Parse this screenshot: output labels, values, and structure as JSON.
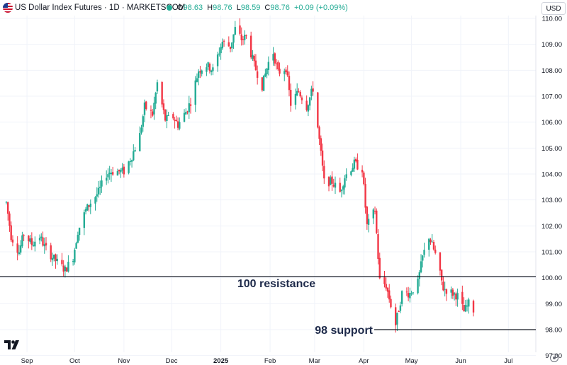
{
  "header": {
    "title": "US Dollar Index Futures · 1D · MARKETSCOM",
    "ohlc": [
      {
        "k": "O",
        "v": "98.63"
      },
      {
        "k": "H",
        "v": "98.76"
      },
      {
        "k": "L",
        "v": "98.59"
      },
      {
        "k": "C",
        "v": "98.76"
      },
      {
        "k": "",
        "v": "+0.09 (+0.09%)"
      }
    ],
    "currency": "USD"
  },
  "colors": {
    "up": "#22ab94",
    "down": "#f23645",
    "level_line": "#131722",
    "annotation": "#1e2a4a"
  },
  "icons": [
    "us-flag-icon",
    "status-dot-icon",
    "tradingview-logo-icon",
    "settings-gear-icon"
  ],
  "chart_data": {
    "type": "candlestick",
    "title": "US Dollar Index Futures · 1D · MARKETSCOM",
    "xlabel": "",
    "ylabel": "",
    "ylim": [
      96.8,
      110.3
    ],
    "yticks": [
      "97.00",
      "98.00",
      "99.00",
      "100.00",
      "101.00",
      "102.00",
      "103.00",
      "104.00",
      "105.00",
      "106.00",
      "107.00",
      "108.00",
      "109.00",
      "110.00"
    ],
    "ytick_values": [
      97,
      98,
      99,
      100,
      101,
      102,
      103,
      104,
      105,
      106,
      107,
      108,
      109,
      110
    ],
    "xticks": [
      "Sep",
      "Oct",
      "Nov",
      "Dec",
      "2025",
      "Feb",
      "Mar",
      "Apr",
      "May",
      "Jun",
      "Jul"
    ],
    "xtick_dates": [
      "2024-09-01",
      "2024-10-01",
      "2024-11-01",
      "2024-12-01",
      "2025-01-01",
      "2025-02-01",
      "2025-03-01",
      "2025-04-01",
      "2025-05-01",
      "2025-06-01",
      "2025-07-01"
    ],
    "x_start": "2024-08-15",
    "x_end": "2025-07-12",
    "close_series": [
      [
        "2024-08-19",
        102.9
      ],
      [
        "2024-08-22",
        101.6
      ],
      [
        "2024-08-27",
        101.0
      ],
      [
        "2024-08-30",
        101.7
      ],
      [
        "2024-09-04",
        101.3
      ],
      [
        "2024-09-09",
        101.6
      ],
      [
        "2024-09-12",
        101.2
      ],
      [
        "2024-09-17",
        100.8
      ],
      [
        "2024-09-20",
        100.6
      ],
      [
        "2024-09-25",
        100.3
      ],
      [
        "2024-09-30",
        100.8
      ],
      [
        "2024-10-03",
        101.8
      ],
      [
        "2024-10-08",
        102.6
      ],
      [
        "2024-10-11",
        102.9
      ],
      [
        "2024-10-16",
        103.3
      ],
      [
        "2024-10-21",
        104.0
      ],
      [
        "2024-10-24",
        104.1
      ],
      [
        "2024-10-29",
        104.1
      ],
      [
        "2024-11-01",
        104.1
      ],
      [
        "2024-11-06",
        104.7
      ],
      [
        "2024-11-11",
        105.5
      ],
      [
        "2024-11-14",
        106.6
      ],
      [
        "2024-11-19",
        106.3
      ],
      [
        "2024-11-22",
        107.5
      ],
      [
        "2024-11-27",
        106.1
      ],
      [
        "2024-12-02",
        106.2
      ],
      [
        "2024-12-05",
        105.9
      ],
      [
        "2024-12-10",
        106.4
      ],
      [
        "2024-12-13",
        106.8
      ],
      [
        "2024-12-18",
        108.0
      ],
      [
        "2024-12-23",
        108.2
      ],
      [
        "2024-12-27",
        108.0
      ],
      [
        "2025-01-02",
        109.1
      ],
      [
        "2025-01-07",
        108.9
      ],
      [
        "2025-01-10",
        109.6
      ],
      [
        "2025-01-14",
        109.2
      ],
      [
        "2025-01-17",
        109.3
      ],
      [
        "2025-01-22",
        108.2
      ],
      [
        "2025-01-27",
        107.4
      ],
      [
        "2025-01-31",
        108.3
      ],
      [
        "2025-02-03",
        108.7
      ],
      [
        "2025-02-06",
        107.9
      ],
      [
        "2025-02-11",
        108.1
      ],
      [
        "2025-02-14",
        106.7
      ],
      [
        "2025-02-19",
        107.2
      ],
      [
        "2025-02-24",
        106.6
      ],
      [
        "2025-02-28",
        107.3
      ],
      [
        "2025-03-04",
        105.3
      ],
      [
        "2025-03-07",
        103.7
      ],
      [
        "2025-03-12",
        103.7
      ],
      [
        "2025-03-17",
        103.3
      ],
      [
        "2025-03-20",
        103.9
      ],
      [
        "2025-03-26",
        104.4
      ],
      [
        "2025-03-31",
        104.2
      ],
      [
        "2025-04-03",
        102.0
      ],
      [
        "2025-04-08",
        102.6
      ],
      [
        "2025-04-11",
        99.9
      ],
      [
        "2025-04-15",
        99.7
      ],
      [
        "2025-04-21",
        98.2
      ],
      [
        "2025-04-25",
        99.4
      ],
      [
        "2025-04-30",
        99.4
      ],
      [
        "2025-05-05",
        99.8
      ],
      [
        "2025-05-08",
        100.8
      ],
      [
        "2025-05-12",
        101.6
      ],
      [
        "2025-05-16",
        100.9
      ],
      [
        "2025-05-21",
        99.6
      ],
      [
        "2025-05-27",
        99.4
      ],
      [
        "2025-05-30",
        99.3
      ],
      [
        "2025-06-03",
        98.7
      ],
      [
        "2025-06-06",
        99.0
      ],
      [
        "2025-06-09",
        98.76
      ]
    ],
    "annotations": [
      {
        "label": "100 resistance",
        "y": 100.05
      },
      {
        "label": "98 support",
        "y": 98.0
      }
    ]
  }
}
